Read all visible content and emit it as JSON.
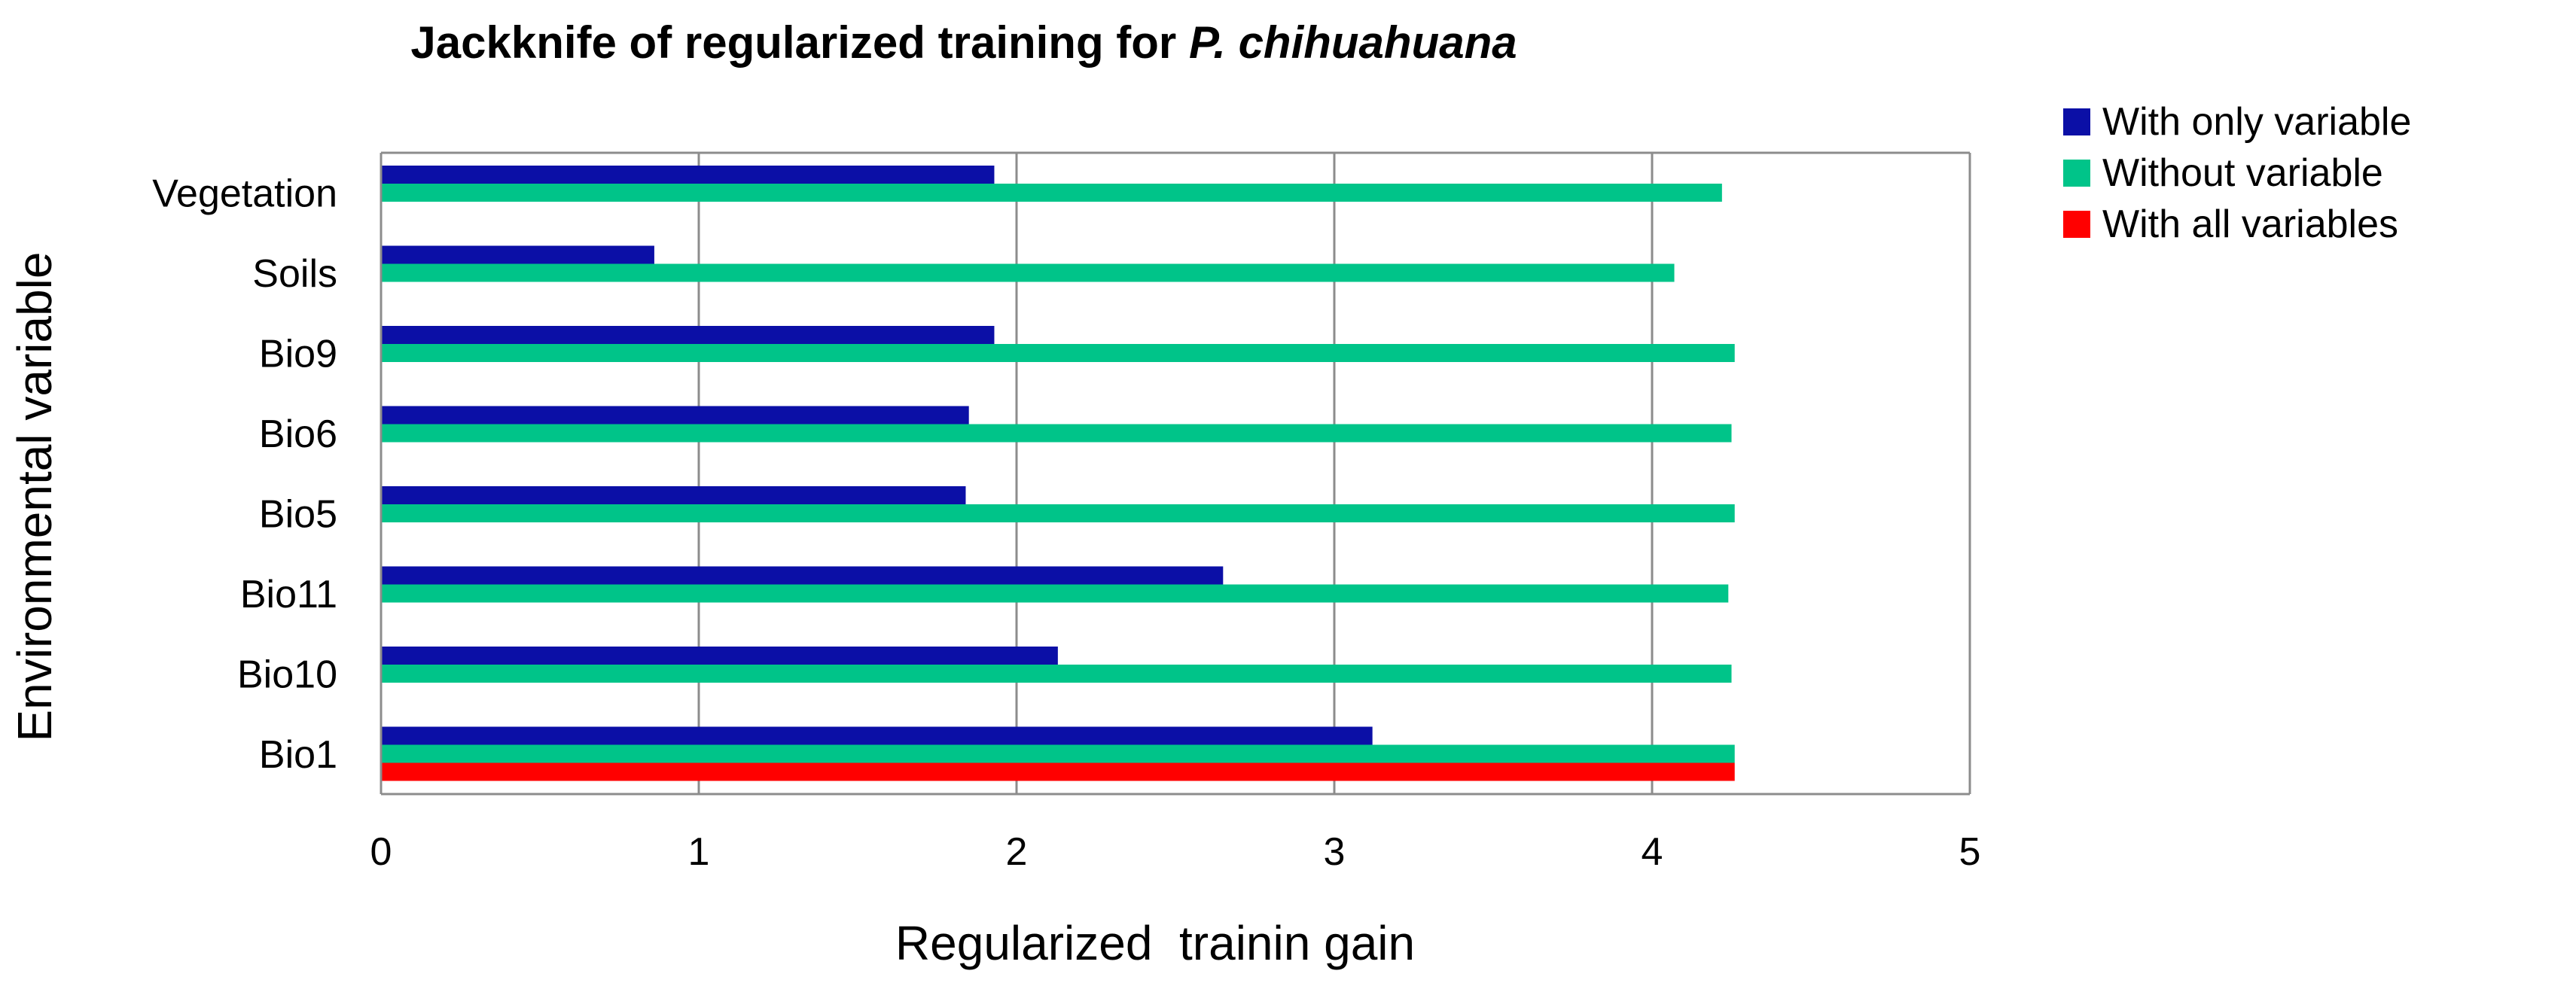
{
  "chart_data": {
    "type": "bar",
    "orientation": "horizontal",
    "title": "Jackknife of regularized training for",
    "title_italic": "P. chihuahuana",
    "xlabel": "Regularized  trainin gain",
    "ylabel": "Environmental variable",
    "categories": [
      "Vegetation",
      "Soils",
      "Bio9",
      "Bio6",
      "Bio5",
      "Bio11",
      "Bio10",
      "Bio1"
    ],
    "xlim": [
      0,
      5
    ],
    "xticks": [
      "0",
      "1",
      "2",
      "3",
      "4",
      "5"
    ],
    "grid": "vertical",
    "legend_position": "top-right",
    "series": [
      {
        "name": "With only variable",
        "color": "#0b0fa6",
        "values": [
          1.93,
          0.86,
          1.93,
          1.85,
          1.84,
          2.65,
          2.13,
          3.12
        ]
      },
      {
        "name": "Without variable",
        "color": "#00c489",
        "values": [
          4.22,
          4.07,
          4.26,
          4.25,
          4.26,
          4.24,
          4.25,
          4.26
        ]
      },
      {
        "name": "With all variables",
        "color": "#ff0000",
        "values": [
          null,
          null,
          null,
          null,
          null,
          null,
          null,
          4.26
        ]
      }
    ]
  }
}
